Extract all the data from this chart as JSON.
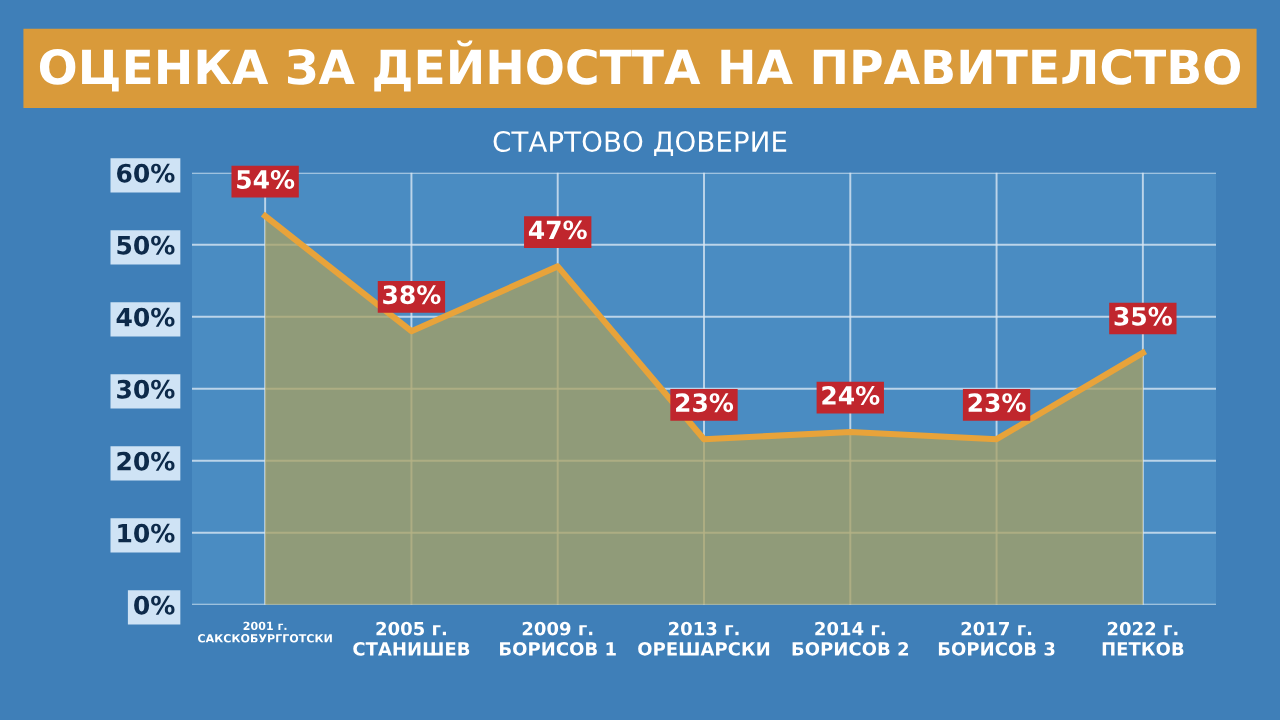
{
  "chart_data": {
    "type": "area",
    "title": "ОЦЕНКА ЗА ДЕЙНОСТТА НА ПРАВИТЕЛСТВО",
    "subtitle": "СТАРТОВО ДОВЕРИЕ",
    "categories": [
      "2001 г.\nСАКСКОБУРГГОТСКИ",
      "2005 г.\nСТАНИШЕВ",
      "2009 г.\nБОРИСОВ 1",
      "2013 г.\nОРЕШАРСКИ",
      "2014 г.\nБОРИСОВ 2",
      "2017 г.\nБОРИСОВ 3",
      "2022 г.\nПЕТКОВ"
    ],
    "series": [
      {
        "color": "#e8a33a",
        "values": [
          54,
          38,
          47,
          23,
          24,
          23,
          35
        ]
      }
    ],
    "value_labels": [
      "54%",
      "38%",
      "47%",
      "23%",
      "24%",
      "23%",
      "35%"
    ],
    "ylim": [
      0,
      60
    ],
    "yticks": [
      {
        "value": 0,
        "label": "0%"
      },
      {
        "value": 10,
        "label": "10%"
      },
      {
        "value": 20,
        "label": "20%"
      },
      {
        "value": 30,
        "label": "30%"
      },
      {
        "value": 40,
        "label": "40%"
      },
      {
        "value": 50,
        "label": "50%"
      },
      {
        "value": 60,
        "label": "60%"
      }
    ],
    "grid": true,
    "marker": "none",
    "line_style": "solid"
  }
}
